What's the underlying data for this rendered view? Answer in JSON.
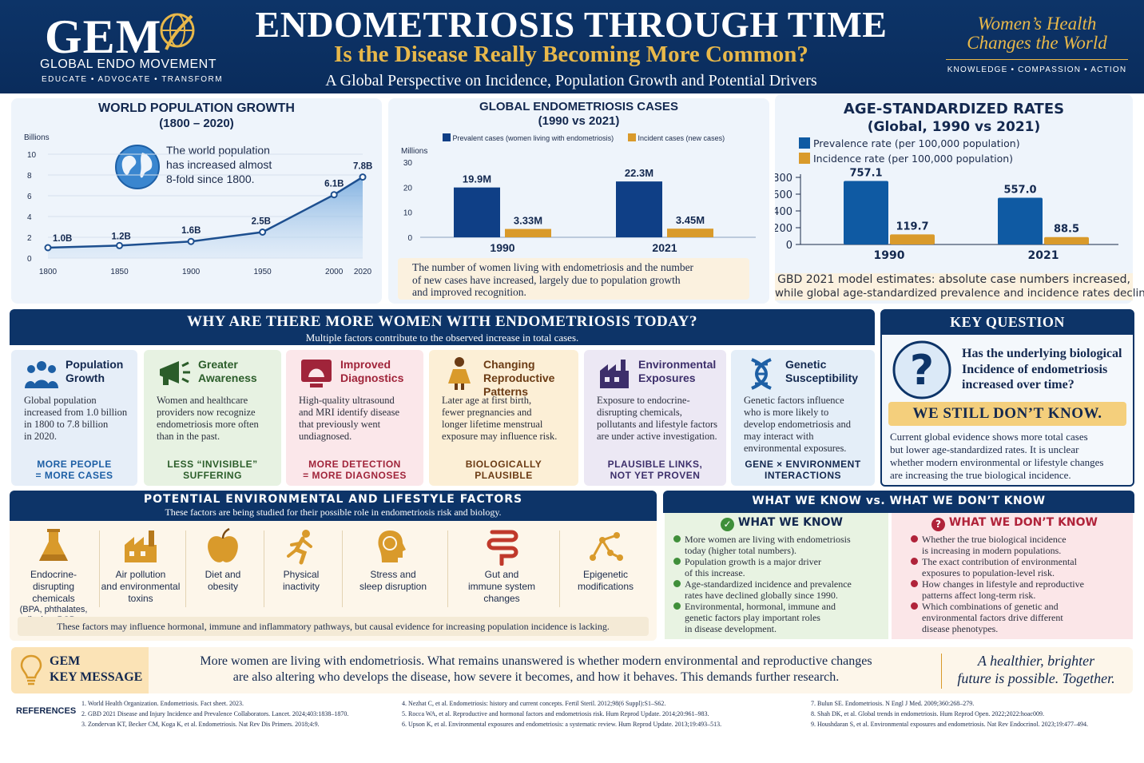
{
  "header": {
    "logo": "GEM",
    "org": "GLOBAL ENDO MOVEMENT",
    "tagline": "EDUCATE  •  ADVOCATE  •  TRANSFORM",
    "title": "ENDOMETRIOSIS THROUGH TIME",
    "subtitle": "Is the Disease Really Becoming More Common?",
    "description": "A Global Perspective on Incidence, Population Growth and Potential Drivers",
    "slogan_line1": "Women’s Health",
    "slogan_line2": "Changes the World",
    "slogan_sub": "KNOWLEDGE  •  COMPASSION  •  ACTION"
  },
  "population": {
    "title1": "WORLD POPULATION GROWTH",
    "title2": "(1800 – 2020)",
    "unit": "Billions",
    "note1": "The world population",
    "note2": "has increased almost",
    "note3": "8-fold since 1800."
  },
  "cases": {
    "title1": "GLOBAL ENDOMETRIOSIS CASES",
    "title2": "(1990 vs 2021)",
    "unit": "Millions",
    "caption1": "The number of women living with endometriosis and the number",
    "caption2": "of new cases have increased, largely due to population growth",
    "caption3": "and improved recognition."
  },
  "rates": {
    "title1": "AGE-STANDARDIZED RATES",
    "title2": "(Global, 1990 vs 2021)",
    "caption1": "GBD 2021 model estimates: absolute case numbers increased,",
    "caption2": "while global age-standardized prevalence and incidence rates decline"
  },
  "chart_data": [
    {
      "type": "area",
      "ylabel": "Billions",
      "x": [
        1800,
        1850,
        1900,
        1950,
        2000,
        2020
      ],
      "series": [
        {
          "values": [
            1.0,
            1.2,
            1.6,
            2.5,
            6.1,
            7.8
          ]
        }
      ],
      "data_labels": [
        "1.0B",
        "1.2B",
        "1.6B",
        "2.5B",
        "6.1B",
        "7.8B"
      ],
      "xticks": [
        "1800",
        "1850",
        "1900",
        "1950",
        "2000",
        "2020"
      ],
      "yticks": [
        "0",
        "2",
        "4",
        "6",
        "8",
        "10"
      ],
      "ylim": [
        0,
        10
      ]
    },
    {
      "type": "bar",
      "ylabel": "Millions",
      "categories": [
        "1990",
        "2021"
      ],
      "series": [
        {
          "name": "Prevalent cases (women living with endometriosis)",
          "values": [
            19.9,
            22.3
          ],
          "labels": [
            "19.9M",
            "22.3M"
          ],
          "color": "#0f3f86"
        },
        {
          "name": "Incident cases (new cases)",
          "values": [
            3.33,
            3.45
          ],
          "labels": [
            "3.33M",
            "3.45M"
          ],
          "color": "#d99a2b"
        }
      ],
      "yticks": [
        "0",
        "10",
        "20",
        "30"
      ],
      "ylim": [
        0,
        30
      ],
      "legend": "top"
    },
    {
      "type": "bar",
      "categories": [
        "1990",
        "2021"
      ],
      "series": [
        {
          "name": "Prevalence rate (per 100,000 population)",
          "values": [
            757.1,
            557.0
          ],
          "labels": [
            "757.1",
            "557.0"
          ],
          "color": "#0f5aa3"
        },
        {
          "name": "Incidence rate (per 100,000 population)",
          "values": [
            119.7,
            88.5
          ],
          "labels": [
            "119.7",
            "88.5"
          ],
          "color": "#d99a2b"
        }
      ],
      "yticks": [
        "0",
        "200",
        "400",
        "600",
        "800"
      ],
      "ylim": [
        0,
        800
      ],
      "legend": "top-left"
    }
  ],
  "why": {
    "title": "WHY ARE THERE MORE WOMEN WITH ENDOMETRIOSIS TODAY?",
    "subtitle": "Multiple factors contribute to the observed increase in total cases.",
    "cards": [
      {
        "icon": "people-icon",
        "t1": "Population",
        "t2": "Growth",
        "b1": "Global population",
        "b2": "increased from 1.0 billion",
        "b3": "in 1800 to 7.8 billion",
        "b4": "in 2020.",
        "f1": "MORE PEOPLE",
        "f2": "= MORE CASES"
      },
      {
        "icon": "megaphone-icon",
        "t1": "Greater",
        "t2": "Awareness",
        "b1": "Women and healthcare",
        "b2": "providers now recognize",
        "b3": "endometriosis more often",
        "b4": "than in the past.",
        "f1": "LESS “INVISIBLE”",
        "f2": "SUFFERING"
      },
      {
        "icon": "ultrasound-icon",
        "t1": "Improved",
        "t2": "Diagnostics",
        "b1": "High-quality ultrasound",
        "b2": "and MRI identify disease",
        "b3": "that previously went",
        "b4": "undiagnosed.",
        "f1": "MORE DETECTION",
        "f2": "= MORE DIAGNOSES"
      },
      {
        "icon": "woman-icon",
        "t1": "Changing Reproductive",
        "t2": "Patterns",
        "b1": "Later age at first birth,",
        "b2": "fewer pregnancies and",
        "b3": "longer lifetime menstrual",
        "b4": "exposure may influence risk.",
        "f1": "BIOLOGICALLY",
        "f2": "PLAUSIBLE"
      },
      {
        "icon": "factory-icon",
        "t1": "Environmental",
        "t2": "Exposures",
        "b1": "Exposure to endocrine-",
        "b2": "disrupting chemicals,",
        "b3": "pollutants and lifestyle factors",
        "b4": "are under active investigation.",
        "f1": "PLAUSIBLE LINKS,",
        "f2": "NOT YET PROVEN"
      },
      {
        "icon": "dna-icon",
        "t1": "Genetic",
        "t2": "Susceptibility",
        "b1": "Genetic factors influence",
        "b2": "who is more likely to",
        "b3": "develop endometriosis and",
        "b4": "may interact with",
        "b5": "environmental exposures.",
        "f1": "GENE × ENVIRONMENT",
        "f2": "INTERACTIONS"
      }
    ]
  },
  "key_question": {
    "title": "KEY QUESTION",
    "q1": "Has the underlying biological",
    "q2": "Incidence of endometriosis",
    "q3": "increased over time?",
    "answer": "WE STILL DON’T KNOW.",
    "b1": "Current global evidence shows more total cases",
    "b2": "but lower age-standardized rates. It is unclear",
    "b3": "whether modern environmental or lifestyle changes",
    "b4": "are increasing the true biological incidence."
  },
  "env": {
    "title": "POTENTIAL ENVIRONMENTAL AND LIFESTYLE FACTORS",
    "subtitle": "These factors are being studied for their possible role in endometriosis risk and biology.",
    "items": [
      {
        "icon": "flask-icon",
        "l1": "Endocrine-",
        "l2": "disrupting chemicals",
        "l3": "(BPA, phthalates,",
        "l4": "dioxins, PCBs, PFAS)"
      },
      {
        "icon": "factory-icon",
        "l1": "Air pollution",
        "l2": "and environmental",
        "l3": "toxins"
      },
      {
        "icon": "apple-icon",
        "l1": "Diet and",
        "l2": "obesity"
      },
      {
        "icon": "runner-icon",
        "l1": "Physical",
        "l2": "inactivity"
      },
      {
        "icon": "head-icon",
        "l1": "Stress and",
        "l2": "sleep disruption"
      },
      {
        "icon": "gut-icon",
        "l1": "Gut and",
        "l2": "immune system",
        "l3": "changes"
      },
      {
        "icon": "network-icon",
        "l1": "Epigenetic",
        "l2": "modifications"
      }
    ],
    "footnote": "These factors may influence hormonal, immune and inflammatory pathways, but causal evidence for increasing population incidence is lacking."
  },
  "know": {
    "title": "WHAT WE KNOW vs. WHAT WE DON’T KNOW",
    "know_title": "WHAT WE KNOW",
    "know": [
      [
        "More women are living with endometriosis",
        "today (higher total numbers)."
      ],
      [
        "Population growth is a major driver",
        "of this increase."
      ],
      [
        "Age-standardized incidence and prevalence",
        "rates have declined globally since 1990."
      ],
      [
        "Environmental, hormonal, immune and",
        "genetic factors play important roles",
        "in disease development."
      ]
    ],
    "dont_title": "WHAT WE DON’T KNOW",
    "dont": [
      [
        "Whether the true biological incidence",
        "is increasing in modern populations."
      ],
      [
        "The exact contribution of environmental",
        "exposures to population-level risk."
      ],
      [
        "How changes in lifestyle and reproductive",
        "patterns affect long-term risk."
      ],
      [
        "Which combinations of genetic and",
        "environmental factors drive different",
        "disease phenotypes."
      ]
    ]
  },
  "message": {
    "label1": "GEM",
    "label2": "KEY MESSAGE",
    "l1": "More women are living with endometriosis. What remains unanswered is whether modern environmental and reproductive changes",
    "l2": "are also altering who develops the disease, how severe it becomes, and how it behaves. This demands further research.",
    "sig1": "A healthier, brighter",
    "sig2": "future is possible. Together."
  },
  "references": {
    "label": "REFERENCES",
    "items": [
      "1.   World Health Organization. Endometriosis. Fact sheet. 2023.",
      "2.   GBD 2021 Disease and Injury Incidence and Prevalence Collaborators. Lancet. 2024;403:1838–1870.",
      "3.   Zondervan KT, Becker CM, Koga K, et al. Endometriosis. Nat Rev Dis Primers. 2018;4:9.",
      "4.   Nezhat C, et al. Endometriosis: history and current concepts. Fertil Steril. 2012;98(6 Suppl):S1–S62.",
      "5.   Rocca WA, et al. Reproductive and hormonal factors and endometriosis risk. Hum Reprod Update. 2014;20:961–983.",
      "6.   Upson K, et al. Environmental exposures and endometriosis: a systematic review. Hum Reprod Update. 2013;19:493–513.",
      "7.   Bulun SE. Endometriosis. N Engl J Med. 2009;360:268–279.",
      "8.   Shah DK, et al. Global trends in endometriosis. Hum Reprod Open. 2022;2022:hoac009.",
      "9.   Houshdaran S, et al. Environmental exposures and endometriosis. Nat Rev Endocrinol. 2023;19:477–494."
    ]
  }
}
